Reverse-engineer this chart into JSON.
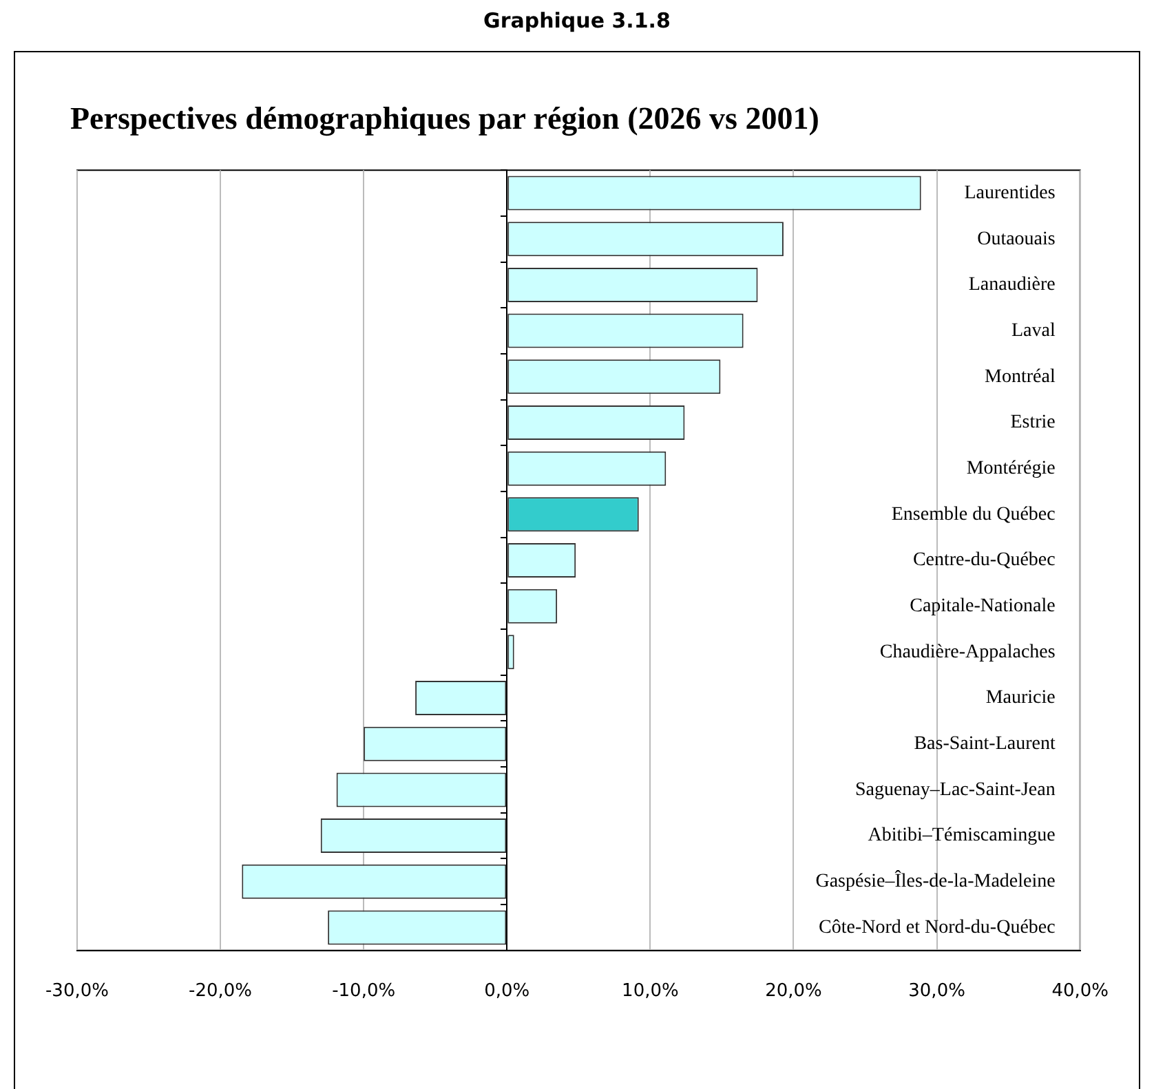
{
  "chart_data": {
    "type": "bar",
    "orientation": "horizontal",
    "title": "Perspectives démographiques par région (2026 vs 2001)",
    "annotations": [
      "Graphique 3.1.8"
    ],
    "categories": [
      "Laurentides",
      "Outaouais",
      "Lanaudière",
      "Laval",
      "Montréal",
      "Estrie",
      "Montérégie",
      "Ensemble du Québec",
      "Centre-du-Québec",
      "Capitale-Nationale",
      "Chaudière-Appalaches",
      "Mauricie",
      "Bas-Saint-Laurent",
      "Saguenay–Lac-Saint-Jean",
      "Abitibi–Témiscamingue",
      "Gaspésie–Îles-de-la-Madeleine",
      "Côte-Nord et Nord-du-Québec"
    ],
    "values": [
      28.9,
      19.3,
      17.5,
      16.5,
      14.9,
      12.4,
      11.1,
      9.2,
      4.8,
      3.5,
      0.5,
      -6.4,
      -10.0,
      -11.9,
      -13.0,
      -18.5,
      -12.5
    ],
    "colors": [
      "#ccffff",
      "#ccffff",
      "#ccffff",
      "#ccffff",
      "#ccffff",
      "#ccffff",
      "#ccffff",
      "#33cccc",
      "#ccffff",
      "#ccffff",
      "#ccffff",
      "#ccffff",
      "#ccffff",
      "#ccffff",
      "#ccffff",
      "#ccffff",
      "#ccffff"
    ],
    "xlim": [
      -30,
      40
    ],
    "xticks": [
      {
        "value": -30,
        "label": "-30,0%"
      },
      {
        "value": -20,
        "label": "-20,0%"
      },
      {
        "value": -10,
        "label": "-10,0%"
      },
      {
        "value": 0,
        "label": "0,0%"
      },
      {
        "value": 10,
        "label": "10,0%"
      },
      {
        "value": 20,
        "label": "20,0%"
      },
      {
        "value": 30,
        "label": "30,0%"
      },
      {
        "value": 40,
        "label": "40,0%"
      }
    ],
    "grid": "x",
    "legend": false
  }
}
